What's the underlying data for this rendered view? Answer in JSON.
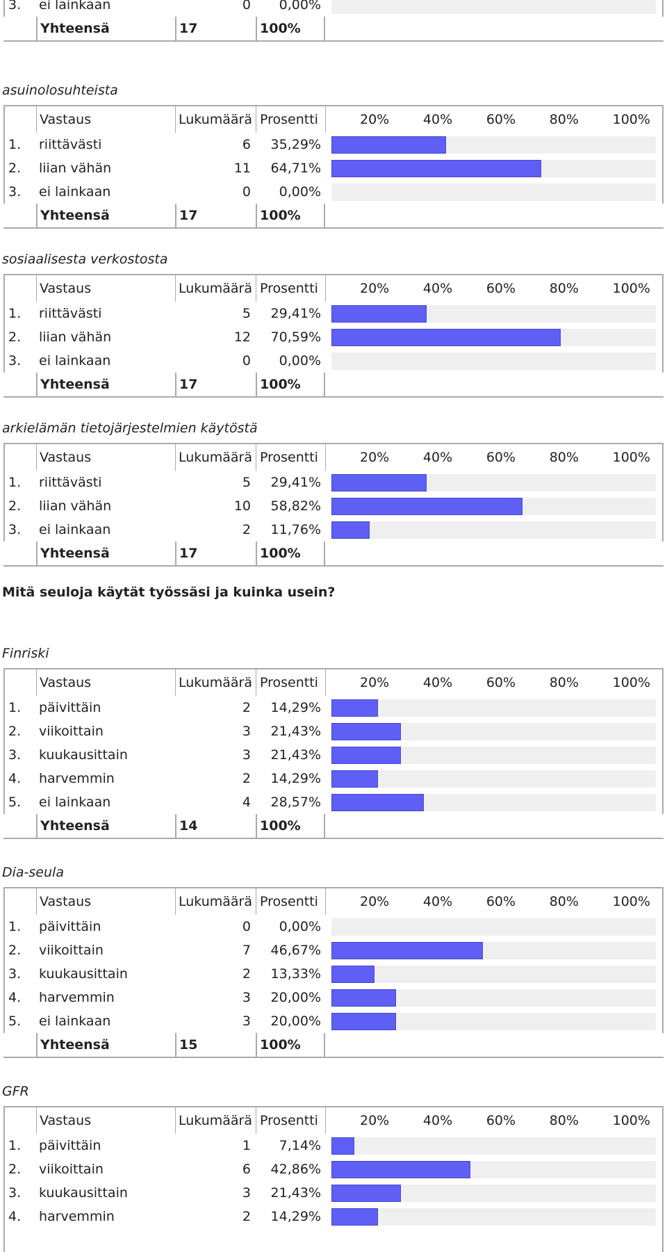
{
  "scale_labels": [
    "20%",
    "40%",
    "60%",
    "80%",
    "100%"
  ],
  "columns": {
    "answer": "Vastaus",
    "count": "Lukumäärä",
    "percent": "Prosentti"
  },
  "blocks": [
    {
      "kind": "table",
      "title": "",
      "header": false,
      "continued": true,
      "rows": [
        {
          "num": "3.",
          "label": "ei lainkaan",
          "count": "0",
          "pct": "0,00%",
          "value": 0
        }
      ],
      "total": {
        "label": "Yhteensä",
        "count": "17",
        "pct": "100%"
      }
    },
    {
      "kind": "table",
      "title": "asuinolosuhteista",
      "header": true,
      "rows": [
        {
          "num": "1.",
          "label": "riittävästi",
          "count": "6",
          "pct": "35,29%",
          "value": 35.29
        },
        {
          "num": "2.",
          "label": "liian vähän",
          "count": "11",
          "pct": "64,71%",
          "value": 64.71
        },
        {
          "num": "3.",
          "label": "ei lainkaan",
          "count": "0",
          "pct": "0,00%",
          "value": 0
        }
      ],
      "total": {
        "label": "Yhteensä",
        "count": "17",
        "pct": "100%"
      }
    },
    {
      "kind": "table",
      "title": "sosiaalisesta verkostosta",
      "header": true,
      "rows": [
        {
          "num": "1.",
          "label": "riittävästi",
          "count": "5",
          "pct": "29,41%",
          "value": 29.41
        },
        {
          "num": "2.",
          "label": "liian vähän",
          "count": "12",
          "pct": "70,59%",
          "value": 70.59
        },
        {
          "num": "3.",
          "label": "ei lainkaan",
          "count": "0",
          "pct": "0,00%",
          "value": 0
        }
      ],
      "total": {
        "label": "Yhteensä",
        "count": "17",
        "pct": "100%"
      }
    },
    {
      "kind": "table",
      "title": "arkielämän tietojärjestelmien käytöstä",
      "header": true,
      "rows": [
        {
          "num": "1.",
          "label": "riittävästi",
          "count": "5",
          "pct": "29,41%",
          "value": 29.41
        },
        {
          "num": "2.",
          "label": "liian vähän",
          "count": "10",
          "pct": "58,82%",
          "value": 58.82
        },
        {
          "num": "3.",
          "label": "ei lainkaan",
          "count": "2",
          "pct": "11,76%",
          "value": 11.76
        }
      ],
      "total": {
        "label": "Yhteensä",
        "count": "17",
        "pct": "100%"
      }
    },
    {
      "kind": "question",
      "text": "Mitä seuloja käytät työssäsi ja kuinka usein?"
    },
    {
      "kind": "table",
      "title": "Finriski",
      "header": true,
      "rows": [
        {
          "num": "1.",
          "label": "päivittäin",
          "count": "2",
          "pct": "14,29%",
          "value": 14.29
        },
        {
          "num": "2.",
          "label": "viikoittain",
          "count": "3",
          "pct": "21,43%",
          "value": 21.43
        },
        {
          "num": "3.",
          "label": "kuukausittain",
          "count": "3",
          "pct": "21,43%",
          "value": 21.43
        },
        {
          "num": "4.",
          "label": "harvemmin",
          "count": "2",
          "pct": "14,29%",
          "value": 14.29
        },
        {
          "num": "5.",
          "label": "ei lainkaan",
          "count": "4",
          "pct": "28,57%",
          "value": 28.57
        }
      ],
      "total": {
        "label": "Yhteensä",
        "count": "14",
        "pct": "100%"
      }
    },
    {
      "kind": "table",
      "title": "Dia-seula",
      "header": true,
      "rows": [
        {
          "num": "1.",
          "label": "päivittäin",
          "count": "0",
          "pct": "0,00%",
          "value": 0
        },
        {
          "num": "2.",
          "label": "viikoittain",
          "count": "7",
          "pct": "46,67%",
          "value": 46.67
        },
        {
          "num": "3.",
          "label": "kuukausittain",
          "count": "2",
          "pct": "13,33%",
          "value": 13.33
        },
        {
          "num": "4.",
          "label": "harvemmin",
          "count": "3",
          "pct": "20,00%",
          "value": 20.0
        },
        {
          "num": "5.",
          "label": "ei lainkaan",
          "count": "3",
          "pct": "20,00%",
          "value": 20.0
        }
      ],
      "total": {
        "label": "Yhteensä",
        "count": "15",
        "pct": "100%"
      }
    },
    {
      "kind": "table",
      "title": "GFR",
      "header": true,
      "truncated": true,
      "rows": [
        {
          "num": "1.",
          "label": "päivittäin",
          "count": "1",
          "pct": "7,14%",
          "value": 7.14
        },
        {
          "num": "2.",
          "label": "viikoittain",
          "count": "6",
          "pct": "42,86%",
          "value": 42.86
        },
        {
          "num": "3.",
          "label": "kuukausittain",
          "count": "3",
          "pct": "21,43%",
          "value": 21.43
        },
        {
          "num": "4.",
          "label": "harvemmin",
          "count": "2",
          "pct": "14,29%",
          "value": 14.29
        }
      ]
    }
  ]
}
